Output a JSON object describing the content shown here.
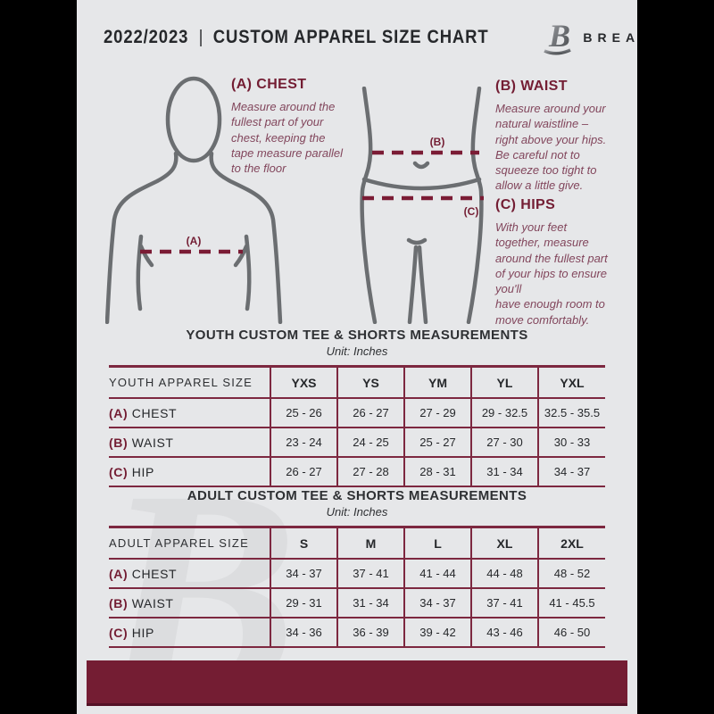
{
  "header": {
    "year": "2022/2023",
    "separator": "|",
    "title": "CUSTOM APPAREL SIZE CHART",
    "brand": "BREAKAWAY",
    "logo_letter": "B"
  },
  "instructions": {
    "chest": {
      "heading": "(A) CHEST",
      "body": "Measure around the\nfullest part of your\nchest, keeping the\ntape measure parallel\nto the floor"
    },
    "waist": {
      "heading": "(B) WAIST",
      "body": "Measure around your\nnatural waistline –\nright above your hips.\nBe careful not to\nsqueeze too tight to\nallow a little give."
    },
    "hips": {
      "heading": "(C) HIPS",
      "body": "With your feet\ntogether, measure\naround the fullest part\nof your hips to ensure\nyou'll\nhave enough room to\nmove comfortably."
    }
  },
  "diagram": {
    "chest_label": "(A)",
    "waist_label": "(B)",
    "hip_label": "(C)"
  },
  "watermark_letter": "B",
  "colors": {
    "maroon": "#741d33",
    "table_border": "#7d2840",
    "dashed_line": "#7b1c35",
    "outline_gray": "#6b6e71",
    "page_bg": "#e6e7e9",
    "text_dark": "#26282b",
    "body_text": "#82465c"
  },
  "tables": [
    {
      "id": "youth",
      "title": "YOUTH CUSTOM TEE & SHORTS MEASUREMENTS",
      "unit": "Unit: Inches",
      "size_label": "YOUTH APPAREL SIZE",
      "sizes": [
        "YXS",
        "YS",
        "YM",
        "YL",
        "YXL"
      ],
      "rows": [
        {
          "prefix": "(A)",
          "label": "CHEST",
          "values": [
            "25 - 26",
            "26 - 27",
            "27 - 29",
            "29 - 32.5",
            "32.5 - 35.5"
          ]
        },
        {
          "prefix": "(B)",
          "label": "WAIST",
          "values": [
            "23 - 24",
            "24 - 25",
            "25 - 27",
            "27 - 30",
            "30 - 33"
          ]
        },
        {
          "prefix": "(C)",
          "label": "HIP",
          "values": [
            "26 - 27",
            "27 - 28",
            "28 - 31",
            "31 - 34",
            "34 - 37"
          ]
        }
      ]
    },
    {
      "id": "adult",
      "title": "ADULT CUSTOM TEE & SHORTS MEASUREMENTS",
      "unit": "Unit: Inches",
      "size_label": "ADULT APPAREL SIZE",
      "sizes": [
        "S",
        "M",
        "L",
        "XL",
        "2XL"
      ],
      "rows": [
        {
          "prefix": "(A)",
          "label": "CHEST",
          "values": [
            "34 - 37",
            "37 - 41",
            "41 - 44",
            "44 - 48",
            "48 - 52"
          ]
        },
        {
          "prefix": "(B)",
          "label": "WAIST",
          "values": [
            "29 - 31",
            "31 - 34",
            "34 - 37",
            "37 - 41",
            "41 - 45.5"
          ]
        },
        {
          "prefix": "(C)",
          "label": "HIP",
          "values": [
            "34 - 36",
            "36 - 39",
            "39 - 42",
            "43 - 46",
            "46 - 50"
          ]
        }
      ]
    }
  ]
}
